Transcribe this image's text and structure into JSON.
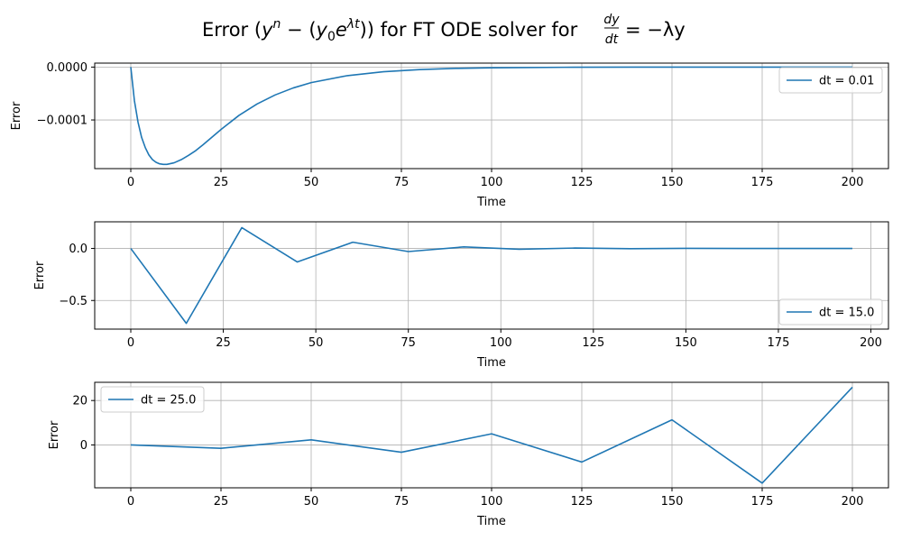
{
  "title": {
    "prefix": "Error (",
    "body": ") for FT ODE solver for ",
    "frac_num": "dy",
    "frac_den": "dt",
    "suffix": "= −λy"
  },
  "chart_data": [
    {
      "type": "line",
      "xlabel": "Time",
      "ylabel": "Error",
      "xlim": [
        -10,
        210
      ],
      "ylim": [
        -0.000192,
        7.5e-06
      ],
      "xticks": [
        0,
        25,
        50,
        75,
        100,
        125,
        150,
        175,
        200
      ],
      "xtick_labels": [
        "0",
        "25",
        "50",
        "75",
        "100",
        "125",
        "150",
        "175",
        "200"
      ],
      "yticks": [
        0,
        -0.0001
      ],
      "ytick_labels": [
        "0.0000",
        "−0.0001"
      ],
      "grid": true,
      "legend_position": "upper-right",
      "color": "#1f77b4",
      "series": [
        {
          "name": "dt = 0.01",
          "x": [
            0,
            1,
            2,
            3,
            4,
            5,
            6,
            7,
            8,
            9,
            10,
            12,
            14,
            16,
            18,
            20,
            25,
            30,
            35,
            40,
            45,
            50,
            60,
            70,
            80,
            90,
            100,
            120,
            140,
            160,
            180,
            200
          ],
          "y": [
            0,
            -6.34e-05,
            -0.000104,
            -0.000133,
            -0.000152,
            -0.000166,
            -0.000175,
            -0.00018,
            -0.000183,
            -0.000184,
            -0.000184,
            -0.000181,
            -0.000175,
            -0.000167,
            -0.000158,
            -0.000147,
            -0.000118,
            -9.13e-05,
            -6.98e-05,
            -5.27e-05,
            -3.95e-05,
            -2.94e-05,
            -1.62e-05,
            -8.8e-06,
            -4.7e-06,
            -2.5e-06,
            -1.3e-06,
            -4e-07,
            -1e-07,
            0,
            0,
            0
          ]
        }
      ]
    },
    {
      "type": "line",
      "xlabel": "Time",
      "ylabel": "Error",
      "xlim": [
        -9.75,
        204.75
      ],
      "ylim": [
        -0.775,
        0.256
      ],
      "xticks": [
        0,
        25,
        50,
        75,
        100,
        125,
        150,
        175,
        200
      ],
      "xtick_labels": [
        "0",
        "25",
        "50",
        "75",
        "100",
        "125",
        "150",
        "175",
        "200"
      ],
      "yticks": [
        0,
        -0.5
      ],
      "ytick_labels": [
        "0.0",
        "−0.5"
      ],
      "grid": true,
      "legend_position": "lower-right",
      "color": "#1f77b4",
      "series": [
        {
          "name": "dt = 15.0",
          "x": [
            0,
            15,
            30,
            45,
            60,
            75,
            90,
            105,
            120,
            135,
            150,
            165,
            180,
            195
          ],
          "y": [
            0,
            -0.72,
            0.2,
            -0.13,
            0.06,
            -0.03,
            0.015,
            -0.008,
            0.004,
            -0.002,
            0.001,
            0,
            0,
            0
          ]
        }
      ]
    },
    {
      "type": "line",
      "xlabel": "Time",
      "ylabel": "Error",
      "xlim": [
        -10,
        210
      ],
      "ylim": [
        -19.3,
        28.2
      ],
      "xticks": [
        0,
        25,
        50,
        75,
        100,
        125,
        150,
        175,
        200
      ],
      "xtick_labels": [
        "0",
        "25",
        "50",
        "75",
        "100",
        "125",
        "150",
        "175",
        "200"
      ],
      "yticks": [
        20,
        0
      ],
      "ytick_labels": [
        "20",
        "0"
      ],
      "grid": true,
      "legend_position": "upper-left",
      "color": "#1f77b4",
      "series": [
        {
          "name": "dt = 25.0",
          "x": [
            0,
            25,
            50,
            75,
            100,
            125,
            150,
            175,
            200
          ],
          "y": [
            0,
            -1.5,
            2.3,
            -3.3,
            5.0,
            -7.7,
            11.3,
            -17.2,
            26.0
          ]
        }
      ]
    }
  ]
}
